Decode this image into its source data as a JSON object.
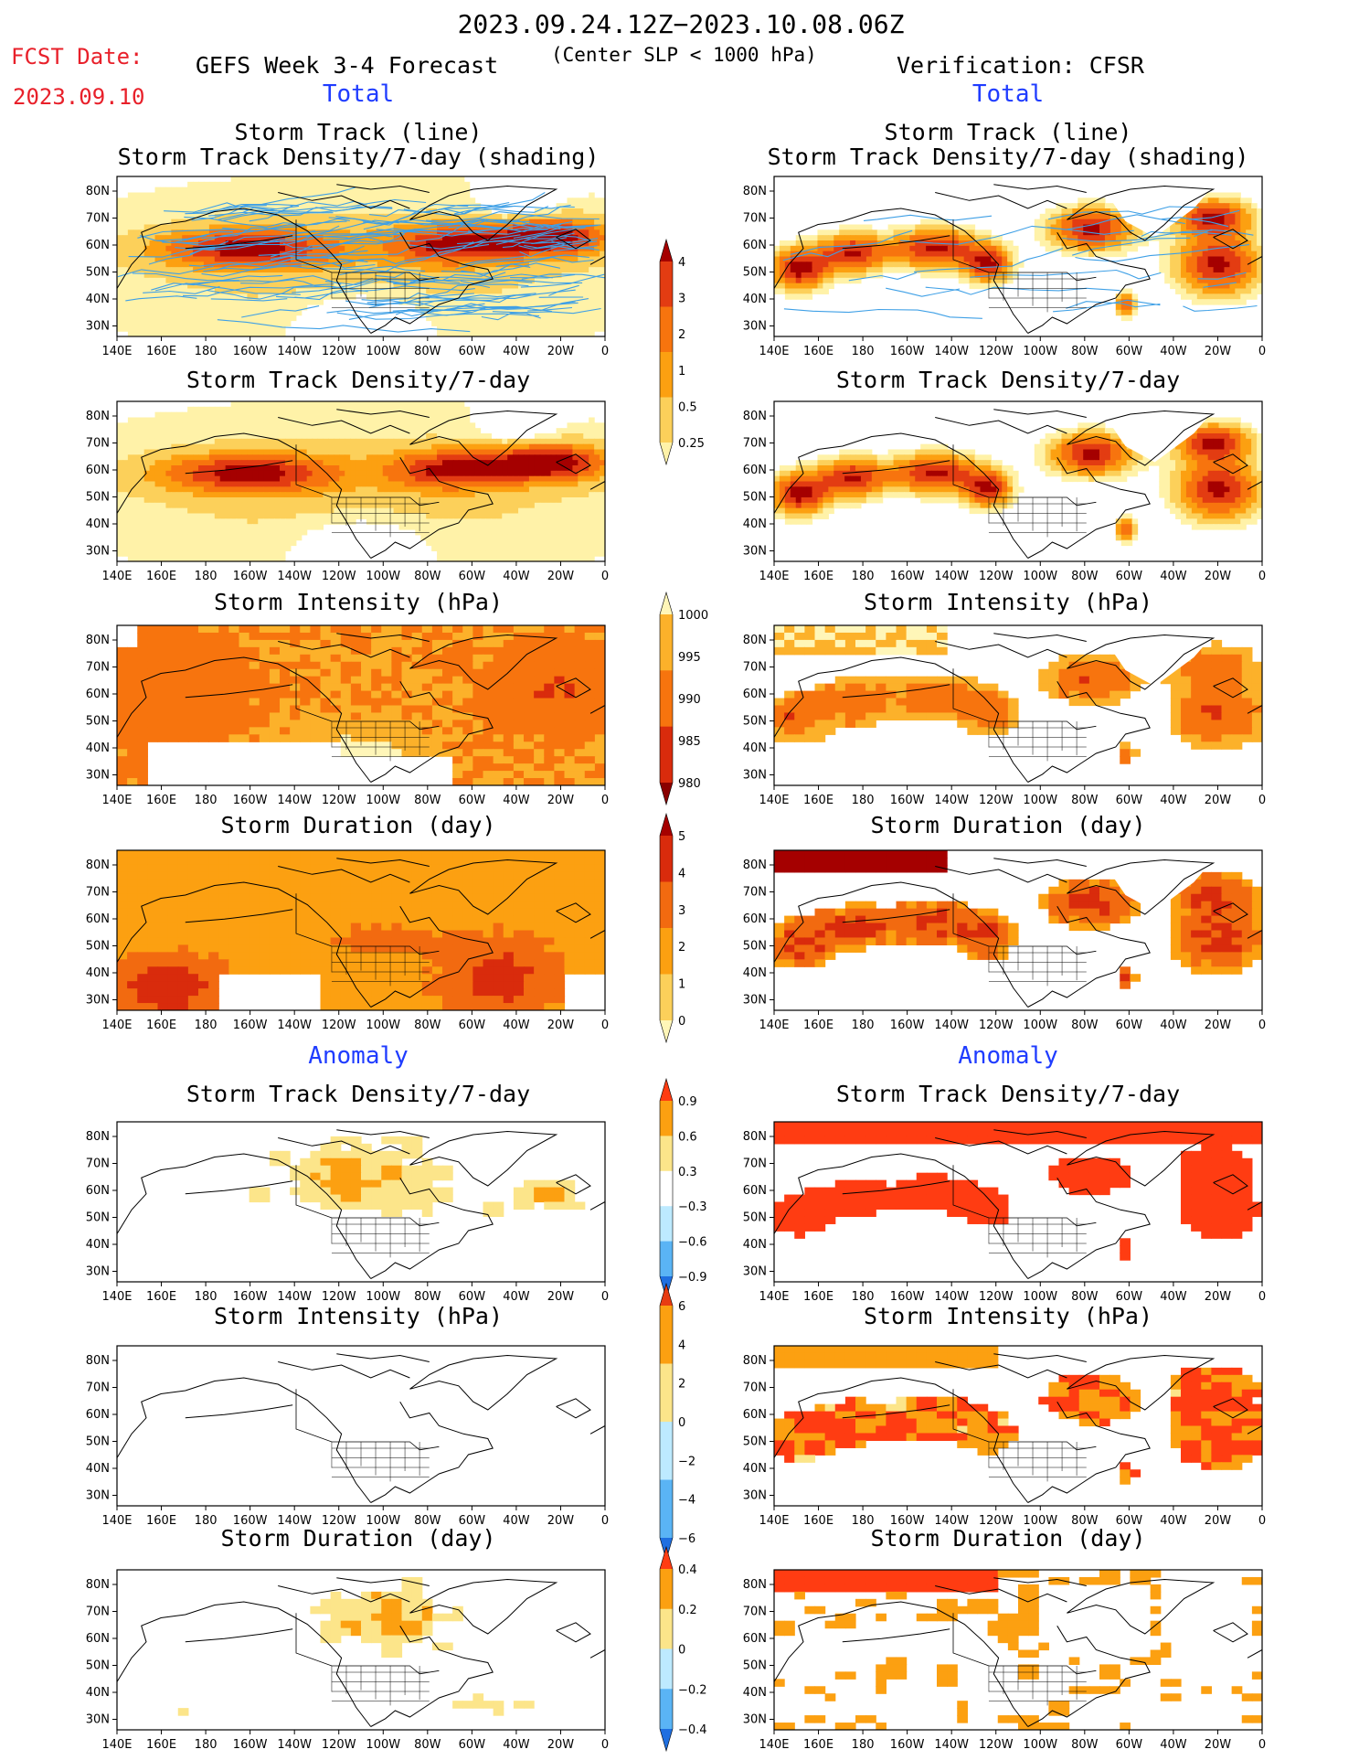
{
  "header": {
    "date_range": "2023.09.24.12Z−2023.10.08.06Z",
    "fcst_label": "FCST Date:",
    "fcst_date": "2023.09.10",
    "forecast_title": "GEFS Week 3-4 Forecast",
    "subtitle": "(Center SLP < 1000 hPa)",
    "verification": "Verification: CFSR"
  },
  "sections": {
    "total": "Total",
    "anomaly": "Anomaly"
  },
  "axes": {
    "lon_labels": [
      "140E",
      "160E",
      "180",
      "160W",
      "140W",
      "120W",
      "100W",
      "80W",
      "60W",
      "40W",
      "20W",
      "0"
    ],
    "lat_labels": [
      "80N",
      "70N",
      "60N",
      "50N",
      "40N",
      "30N"
    ]
  },
  "panels": [
    {
      "id": "fc-track",
      "title1": "Storm Track (line)",
      "title2": "Storm Track Density/7-day (shading)",
      "kind": "density",
      "src": "fc",
      "track": true
    },
    {
      "id": "obs-track",
      "title1": "Storm Track (line)",
      "title2": "Storm Track Density/7-day (shading)",
      "kind": "density",
      "src": "obs",
      "track": true
    },
    {
      "id": "fc-density",
      "title1": "Storm Track Density/7-day",
      "kind": "density",
      "src": "fc"
    },
    {
      "id": "obs-density",
      "title1": "Storm Track Density/7-day",
      "kind": "density",
      "src": "obs"
    },
    {
      "id": "fc-intensity",
      "title1": "Storm Intensity (hPa)",
      "kind": "intensity",
      "src": "fc"
    },
    {
      "id": "obs-intensity",
      "title1": "Storm Intensity (hPa)",
      "kind": "intensity",
      "src": "obs"
    },
    {
      "id": "fc-duration",
      "title1": "Storm Duration (day)",
      "kind": "duration",
      "src": "fc"
    },
    {
      "id": "obs-duration",
      "title1": "Storm Duration (day)",
      "kind": "duration",
      "src": "obs"
    },
    {
      "id": "fc-density-anom",
      "title1": "Storm Track Density/7-day",
      "kind": "anom",
      "src": "fc"
    },
    {
      "id": "obs-density-anom",
      "title1": "Storm Track Density/7-day",
      "kind": "anom",
      "src": "obs"
    },
    {
      "id": "fc-intensity-anom",
      "title1": "Storm Intensity (hPa)",
      "kind": "anom",
      "src": "fc"
    },
    {
      "id": "obs-intensity-anom",
      "title1": "Storm Intensity (hPa)",
      "kind": "anom",
      "src": "obs"
    },
    {
      "id": "fc-duration-anom",
      "title1": "Storm Duration (day)",
      "kind": "anom",
      "src": "fc"
    },
    {
      "id": "obs-duration-anom",
      "title1": "Storm Duration (day)",
      "kind": "anom",
      "src": "obs"
    }
  ],
  "colorbars": [
    {
      "id": "density",
      "labels": [
        "4",
        "3",
        "2",
        "1",
        "0.5",
        "0.25"
      ],
      "colors": [
        "#a50000",
        "#e33c12",
        "#f7740e",
        "#fca011",
        "#fcd05a",
        "#fff2a8"
      ]
    },
    {
      "id": "intensity",
      "labels": [
        "1000",
        "995",
        "990",
        "985",
        "980"
      ],
      "colors": [
        "#fff6b8",
        "#fcb12a",
        "#f7740e",
        "#d92b0c",
        "#8a0000"
      ]
    },
    {
      "id": "duration",
      "labels": [
        "5",
        "4",
        "3",
        "2",
        "1",
        "0"
      ],
      "colors": [
        "#a50000",
        "#d92b0c",
        "#f26a10",
        "#fca011",
        "#fcd05a",
        "#fff6b8"
      ]
    },
    {
      "id": "density-anom",
      "labels": [
        "0.9",
        "0.6",
        "0.3",
        "−0.3",
        "−0.6",
        "−0.9"
      ],
      "colors": [
        "#ff3c12",
        "#fca011",
        "#fce58a",
        "#ffffff",
        "#bdeaff",
        "#5ab4f5",
        "#1f6fe0"
      ]
    },
    {
      "id": "intensity-anom",
      "labels": [
        "6",
        "4",
        "2",
        "0",
        "−2",
        "−4",
        "−6"
      ],
      "colors": [
        "#e83c12",
        "#fca011",
        "#fce58a",
        "#bdeaff",
        "#5ab4f5",
        "#1f6fe0"
      ]
    },
    {
      "id": "duration-anom",
      "labels": [
        "0.4",
        "0.2",
        "0",
        "−0.2",
        "−0.4"
      ],
      "colors": [
        "#ff3c12",
        "#fca011",
        "#fce58a",
        "#bdeaff",
        "#5ab4f5",
        "#1f6fe0"
      ]
    }
  ],
  "map_colors": {
    "land": "#000000",
    "track": "#3fa0e6"
  }
}
